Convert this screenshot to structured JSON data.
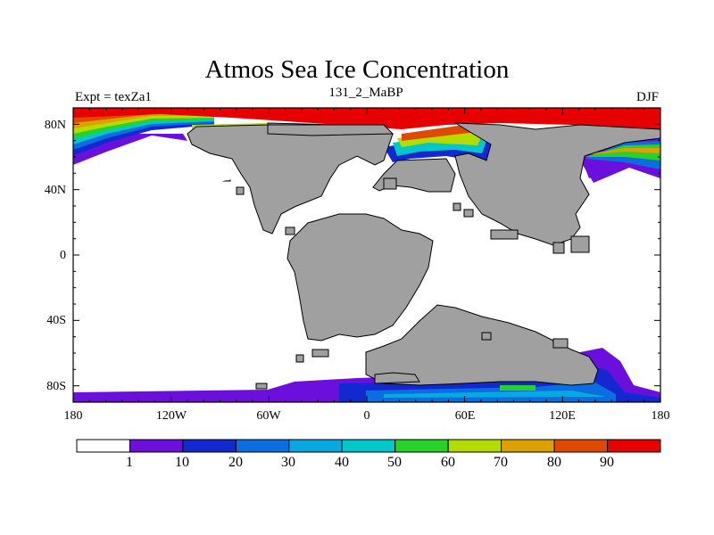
{
  "title": "Atmos Sea Ice Concentration",
  "left_string": "Expt = texZa1",
  "center_string": "131_2_MaBP",
  "right_string": "DJF",
  "map": {
    "lon_ticks": [
      "180",
      "120W",
      "60W",
      "0",
      "60E",
      "120E",
      "180"
    ],
    "lat_ticks": [
      "80N",
      "40N",
      "0",
      "40S",
      "80S"
    ],
    "land_color": "#a0a0a0",
    "ocean_color": "#ffffff"
  },
  "colorbar": {
    "levels": [
      "1",
      "10",
      "20",
      "30",
      "40",
      "50",
      "60",
      "70",
      "80",
      "90"
    ],
    "colors": [
      "#ffffff",
      "#6a0fdc",
      "#1428d2",
      "#0a6ee0",
      "#0aa8e0",
      "#00c8c8",
      "#28d228",
      "#b4dc00",
      "#dca000",
      "#e04a00",
      "#e60000"
    ]
  }
}
